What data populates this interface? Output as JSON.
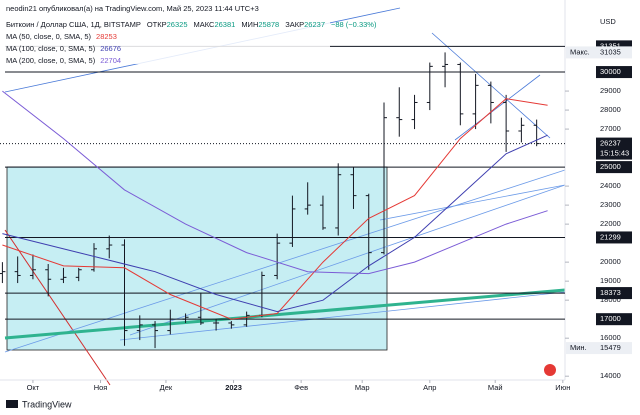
{
  "header": {
    "author_line": "neodin21 опубликовал(а) на TradingView.com, Май 25, 2023 11:44 UTC+3",
    "symbol": "Биткоин / Доллар США, 1Д, BITSTAMP",
    "ohlc": [
      {
        "label": "ОТКР",
        "value": 26325
      },
      {
        "label": "МАКС",
        "value": 26381
      },
      {
        "label": "МИН",
        "value": 25878
      },
      {
        "label": "ЗАКР",
        "value": 26237
      }
    ],
    "change": "−88 (−0.33%)"
  },
  "footer": {
    "brand": "TradingView"
  },
  "chart_data": {
    "type": "candlestick",
    "currency": "USD",
    "xlim": [
      -15.1,
      244
    ],
    "ylim": [
      13800,
      33370
    ],
    "xticks": [
      {
        "value": 0,
        "label": "Окт"
      },
      {
        "value": 31,
        "label": "Ноя"
      },
      {
        "value": 61,
        "label": "Дек"
      },
      {
        "value": 92,
        "label": "2023"
      },
      {
        "value": 123,
        "label": "Фев"
      },
      {
        "value": 151,
        "label": "Мар"
      },
      {
        "value": 182,
        "label": "Апр"
      },
      {
        "value": 212,
        "label": "Май"
      },
      {
        "value": 243,
        "label": "Июн"
      }
    ],
    "yticks": [
      14000,
      16000,
      18000,
      19000,
      20000,
      22000,
      23000,
      24000,
      27000,
      28000,
      29000
    ],
    "grid": false,
    "color": "#131722",
    "candles": {
      "x": [
        -14,
        -7,
        0,
        7,
        14,
        21,
        28,
        35,
        42,
        49,
        56,
        63,
        70,
        77,
        84,
        91,
        98,
        105,
        112,
        119,
        126,
        133,
        140,
        147,
        154,
        161,
        168,
        175,
        182,
        189,
        196,
        203,
        210,
        217,
        224,
        231
      ],
      "open": [
        19400,
        19500,
        19300,
        19600,
        19100,
        19200,
        19600,
        20700,
        20900,
        16400,
        16700,
        16400,
        17000,
        17100,
        16800,
        16800,
        16700,
        17200,
        19300,
        21000,
        22800,
        23000,
        21800,
        24600,
        23500,
        20500,
        27600,
        27500,
        28400,
        30300,
        30400,
        27800,
        29300,
        28400,
        26900,
        27200
      ],
      "high": [
        20000,
        20300,
        20400,
        19900,
        19700,
        19700,
        21000,
        21400,
        21200,
        17200,
        16900,
        17500,
        17300,
        18400,
        17000,
        16900,
        17400,
        19500,
        21500,
        23500,
        24200,
        23500,
        25200,
        25000,
        23600,
        28400,
        29200,
        28800,
        30500,
        31035,
        30500,
        29900,
        29500,
        28800,
        27600,
        27500
      ],
      "low": [
        18900,
        18900,
        19100,
        18200,
        18900,
        19000,
        19500,
        20200,
        15600,
        15900,
        15479,
        16200,
        16800,
        16700,
        16400,
        16500,
        16600,
        17100,
        19100,
        20800,
        22500,
        21700,
        21400,
        22800,
        19600,
        20400,
        26600,
        27000,
        28000,
        29200,
        27200,
        27000,
        27300,
        25800,
        26300,
        26100
      ],
      "close": [
        19500,
        19300,
        19600,
        19100,
        19200,
        19600,
        20700,
        20900,
        16400,
        16700,
        16400,
        17000,
        17100,
        16800,
        16800,
        16700,
        17200,
        19300,
        21000,
        22800,
        23000,
        21800,
        24600,
        23500,
        20500,
        27600,
        27500,
        28400,
        30300,
        30400,
        27800,
        29300,
        28400,
        26900,
        27200,
        26237
      ]
    },
    "series": [
      {
        "name": "MA (50, close, 0, SMA, 5)",
        "color": "#e53935",
        "last_value": 28253,
        "x": [
          -14,
          14,
          42,
          63,
          91,
          112,
          133,
          154,
          175,
          196,
          217,
          236
        ],
        "values": [
          20900,
          19800,
          19700,
          18300,
          17000,
          17300,
          20000,
          22300,
          23500,
          26500,
          28600,
          28253
        ]
      },
      {
        "name": "MA (100, close, 0, SMA, 5)",
        "color": "#3f3fb0",
        "last_value": 26676,
        "x": [
          -14,
          21,
          56,
          84,
          112,
          133,
          154,
          175,
          196,
          217,
          236
        ],
        "values": [
          21500,
          20500,
          19500,
          18300,
          17400,
          18000,
          19800,
          21300,
          23500,
          25700,
          26676
        ]
      },
      {
        "name": "MA (200, close, 0, SMA, 5)",
        "color": "#7b5cd6",
        "last_value": 22704,
        "x": [
          -14,
          14,
          42,
          70,
          98,
          126,
          154,
          175,
          196,
          217,
          236
        ],
        "values": [
          29000,
          26500,
          23800,
          22000,
          20500,
          19500,
          19400,
          20000,
          21000,
          22000,
          22704
        ]
      }
    ],
    "price_lines": [
      31351,
      30000,
      25000,
      21299,
      18373,
      17000
    ],
    "last_price": 26237,
    "countdown": "15:15:43",
    "max_marker": {
      "label": "Макс.",
      "value": 31035
    },
    "min_marker": {
      "label": "Мин.",
      "value": 15479
    }
  }
}
